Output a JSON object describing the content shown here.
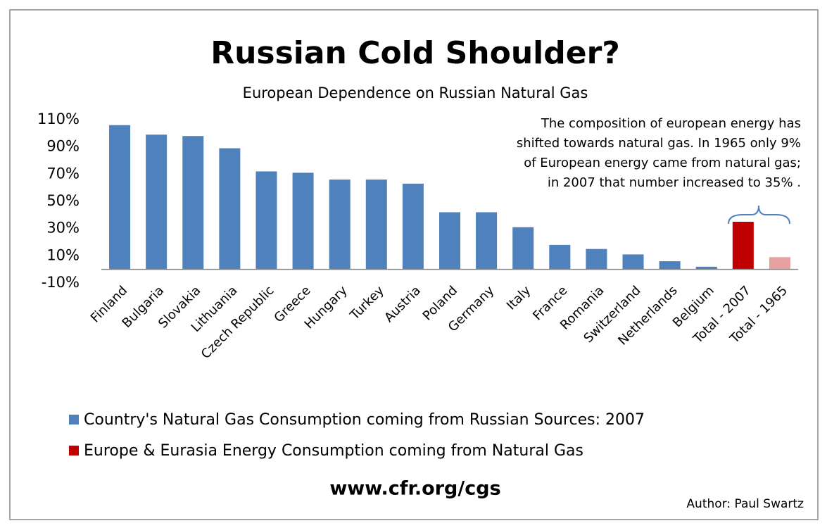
{
  "chart_data": {
    "type": "bar",
    "title": "Russian Cold Shoulder?",
    "subtitle": "European Dependence on Russian Natural Gas",
    "categories": [
      "Finland",
      "Bulgaria",
      "Slovakia",
      "Lithuania",
      "Czech Republic",
      "Greece",
      "Hungary",
      "Turkey",
      "Austria",
      "Poland",
      "Germany",
      "Italy",
      "France",
      "Romania",
      "Switzerland",
      "Netherlands",
      "Belgium",
      "Total - 2007",
      "Total - 1965"
    ],
    "values": [
      106,
      99,
      98,
      89,
      72,
      71,
      66,
      66,
      63,
      42,
      42,
      31,
      18,
      15,
      11,
      6,
      2,
      35,
      9
    ],
    "colors": [
      "#4f81bd",
      "#4f81bd",
      "#4f81bd",
      "#4f81bd",
      "#4f81bd",
      "#4f81bd",
      "#4f81bd",
      "#4f81bd",
      "#4f81bd",
      "#4f81bd",
      "#4f81bd",
      "#4f81bd",
      "#4f81bd",
      "#4f81bd",
      "#4f81bd",
      "#4f81bd",
      "#4f81bd",
      "#c00000",
      "#e6a0a0"
    ],
    "ylim": [
      -10,
      110
    ],
    "yticks": [
      {
        "value": -10,
        "label": "-10%"
      },
      {
        "value": 10,
        "label": "10%"
      },
      {
        "value": 30,
        "label": "30%"
      },
      {
        "value": 50,
        "label": "50%"
      },
      {
        "value": 70,
        "label": "70%"
      },
      {
        "value": 90,
        "label": "90%"
      },
      {
        "value": 110,
        "label": "110%"
      }
    ],
    "grid": false,
    "annotation": [
      "The composition of european energy has",
      "shifted towards natural gas.  In 1965 only 9%",
      "of European energy came from natural gas;",
      "in 2007 that number increased to 35% ."
    ],
    "legend": [
      {
        "label": "Country's Natural  Gas Consumption  coming from Russian Sources: 2007",
        "color": "#4f81bd"
      },
      {
        "label": "Europe & Eurasia Energy Consumption  coming from Natural  Gas",
        "color": "#c00000"
      }
    ],
    "source": "www.cfr.org/cgs",
    "author": "Author: Paul Swartz"
  }
}
